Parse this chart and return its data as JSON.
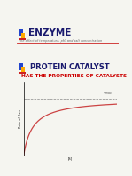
{
  "background_color": "#f5f5f0",
  "title_text": "ENZYME",
  "subtitle_text": "The effect of temperature, pH, and salt concentration",
  "section_title": "PROTEIN CATALYST",
  "section_subtitle": "HAS THE PROPERTIES OF CATALYSTS",
  "title_color": "#1a1a6e",
  "subtitle_color": "#666666",
  "section_title_color": "#1a1a6e",
  "section_subtitle_color": "#cc0000",
  "divider_color": "#cc2222",
  "icon_blue": "#2244cc",
  "icon_yellow": "#ffaa00",
  "icon_red": "#cc2222",
  "curve_color": "#cc4444",
  "dashed_color": "#888888",
  "vmax_text": "V$_{max}$",
  "ylabel_text": "Rate of Rxn",
  "xlabel_text": "[S]"
}
